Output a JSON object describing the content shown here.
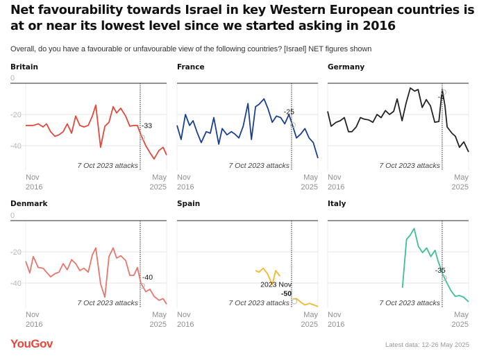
{
  "header": {
    "title": "Net favourability towards Israel in key Western European countries is at or near its lowest level since we started asking in 2016",
    "subtitle": "Overall, do you have a favourable or unfavourable view of the following countries? [Israel] NET figures shown"
  },
  "footer": {
    "logo": "YouGov",
    "logo_color": "#e8453c",
    "latest_data": "Latest data: 12-26 May 2025"
  },
  "chart_data": {
    "type": "line",
    "title": "Net favourability towards Israel in key Western European countries is at or near its lowest level since we started asking in 2016",
    "subtitle": "Overall, do you have a favourable or unfavourable view of the following countries? [Israel] NET figures shown",
    "layout": "small-multiples 3x2",
    "x_axis": {
      "type": "time",
      "range": [
        2016.83,
        2025.37
      ],
      "start_label": [
        "Nov",
        "2016"
      ],
      "end_label": [
        "May",
        "2025"
      ]
    },
    "y_axis": {
      "range": [
        -55,
        0
      ],
      "ticks": [
        0,
        -20,
        -40
      ],
      "tick_labels": [
        "0",
        "-20",
        "-40"
      ],
      "grid": true
    },
    "event_marker": {
      "x": 2023.77,
      "label": "7 Oct 2023 attacks",
      "style": "dotted vertical line"
    },
    "panels": [
      {
        "name": "Britain",
        "color": "#e2473b",
        "annotation": {
          "x": 2023.81,
          "value": -33,
          "label": "-33"
        },
        "series": [
          [
            2016.83,
            -27
          ],
          [
            2017.29,
            -27
          ],
          [
            2017.59,
            -26
          ],
          [
            2017.88,
            -28
          ],
          [
            2018.09,
            -26
          ],
          [
            2018.34,
            -31
          ],
          [
            2018.6,
            -34
          ],
          [
            2018.85,
            -33
          ],
          [
            2019.1,
            -31
          ],
          [
            2019.35,
            -26
          ],
          [
            2019.61,
            -32
          ],
          [
            2019.86,
            -21
          ],
          [
            2020.11,
            -27
          ],
          [
            2020.36,
            -28
          ],
          [
            2020.62,
            -27
          ],
          [
            2020.87,
            -21
          ],
          [
            2021.08,
            -14
          ],
          [
            2021.37,
            -41
          ],
          [
            2021.63,
            -27.5
          ],
          [
            2021.88,
            -25
          ],
          [
            2022.13,
            -15
          ],
          [
            2022.34,
            -19
          ],
          [
            2022.59,
            -16
          ],
          [
            2022.89,
            -21
          ],
          [
            2023.14,
            -27.5
          ],
          [
            2023.39,
            -27
          ],
          [
            2023.6,
            -27
          ],
          [
            2023.81,
            -33
          ],
          [
            2024.11,
            -40
          ],
          [
            2024.36,
            -44.5
          ],
          [
            2024.61,
            -48.5
          ],
          [
            2024.91,
            -43
          ],
          [
            2025.16,
            -41
          ],
          [
            2025.37,
            -46
          ]
        ]
      },
      {
        "name": "France",
        "color": "#1b3f8f",
        "annotation": {
          "x": 2023.77,
          "value": -25,
          "label": "-25"
        },
        "series": [
          [
            2016.83,
            -27
          ],
          [
            2017.08,
            -36
          ],
          [
            2017.34,
            -20
          ],
          [
            2017.59,
            -27
          ],
          [
            2017.8,
            -24
          ],
          [
            2018.05,
            -31.5
          ],
          [
            2018.3,
            -38
          ],
          [
            2018.6,
            -31
          ],
          [
            2018.85,
            -32
          ],
          [
            2019.06,
            -22
          ],
          [
            2019.36,
            -39
          ],
          [
            2019.57,
            -29
          ],
          [
            2019.86,
            -33
          ],
          [
            2020.12,
            -31
          ],
          [
            2020.33,
            -32.5
          ],
          [
            2020.58,
            -35
          ],
          [
            2020.84,
            -27.5
          ],
          [
            2021.13,
            -13
          ],
          [
            2021.34,
            -36
          ],
          [
            2021.59,
            -15
          ],
          [
            2021.8,
            -13.5
          ],
          [
            2022.1,
            -10
          ],
          [
            2022.35,
            -16.5
          ],
          [
            2022.6,
            -25
          ],
          [
            2022.86,
            -21
          ],
          [
            2023.11,
            -22
          ],
          [
            2023.36,
            -26
          ],
          [
            2023.61,
            -20
          ],
          [
            2023.77,
            -25
          ],
          [
            2024.07,
            -35
          ],
          [
            2024.33,
            -32.5
          ],
          [
            2024.58,
            -29
          ],
          [
            2024.83,
            -35
          ],
          [
            2025.09,
            -38
          ],
          [
            2025.37,
            -48
          ]
        ]
      },
      {
        "name": "Germany",
        "color": "#222222",
        "annotation": {
          "x": 2023.77,
          "value": -4,
          "label": "-4"
        },
        "series": [
          [
            2016.83,
            -18
          ],
          [
            2017.04,
            -27.5
          ],
          [
            2017.34,
            -25
          ],
          [
            2017.59,
            -24
          ],
          [
            2017.84,
            -22
          ],
          [
            2018.09,
            -31
          ],
          [
            2018.3,
            -31
          ],
          [
            2018.56,
            -28
          ],
          [
            2018.81,
            -22
          ],
          [
            2019.06,
            -23
          ],
          [
            2019.32,
            -23.5
          ],
          [
            2019.57,
            -25
          ],
          [
            2019.82,
            -20
          ],
          [
            2020.07,
            -22
          ],
          [
            2020.33,
            -17.5
          ],
          [
            2020.58,
            -20
          ],
          [
            2020.83,
            -18
          ],
          [
            2021.04,
            -10
          ],
          [
            2021.34,
            -24
          ],
          [
            2021.59,
            -12.5
          ],
          [
            2021.84,
            -3
          ],
          [
            2022.1,
            -5
          ],
          [
            2022.31,
            -4
          ],
          [
            2022.56,
            -15.5
          ],
          [
            2022.81,
            -10.5
          ],
          [
            2023.06,
            -14.5
          ],
          [
            2023.32,
            -25
          ],
          [
            2023.57,
            -24.5
          ],
          [
            2023.77,
            -4
          ],
          [
            2023.94,
            -14.5
          ],
          [
            2024.07,
            -28
          ],
          [
            2024.36,
            -32
          ],
          [
            2024.57,
            -34
          ],
          [
            2024.82,
            -41
          ],
          [
            2025.08,
            -37.5
          ],
          [
            2025.37,
            -44
          ]
        ]
      },
      {
        "name": "Denmark",
        "color": "#e8756b",
        "annotation": {
          "x": 2023.81,
          "value": -40,
          "label": "-40"
        },
        "series": [
          [
            2016.83,
            -26
          ],
          [
            2017.08,
            -33.5
          ],
          [
            2017.29,
            -23
          ],
          [
            2017.59,
            -30
          ],
          [
            2017.88,
            -30.5
          ],
          [
            2018.09,
            -33
          ],
          [
            2018.34,
            -36
          ],
          [
            2018.6,
            -34
          ],
          [
            2018.85,
            -33
          ],
          [
            2019.1,
            -27.5
          ],
          [
            2019.35,
            -31.5
          ],
          [
            2019.61,
            -25
          ],
          [
            2019.86,
            -27.5
          ],
          [
            2020.11,
            -32
          ],
          [
            2020.36,
            -30.5
          ],
          [
            2020.62,
            -33
          ],
          [
            2020.87,
            -22
          ],
          [
            2021.08,
            -17.5
          ],
          [
            2021.37,
            -40.5
          ],
          [
            2021.63,
            -49
          ],
          [
            2021.88,
            -23
          ],
          [
            2022.13,
            -17.5
          ],
          [
            2022.34,
            -24
          ],
          [
            2022.59,
            -22.5
          ],
          [
            2022.89,
            -25.5
          ],
          [
            2023.14,
            -35
          ],
          [
            2023.39,
            -35
          ],
          [
            2023.6,
            -30
          ],
          [
            2023.81,
            -40
          ],
          [
            2024.11,
            -45.5
          ],
          [
            2024.36,
            -44
          ],
          [
            2024.61,
            -48.5
          ],
          [
            2024.91,
            -51
          ],
          [
            2025.16,
            -50
          ],
          [
            2025.37,
            -53.5
          ]
        ]
      },
      {
        "name": "Spain",
        "color": "#f1b82d",
        "annotation": {
          "x": 2023.86,
          "value": -50,
          "label_top": "2023 Nov",
          "label": "-50"
        },
        "series": [
          [
            2021.59,
            -32
          ],
          [
            2021.8,
            -33
          ],
          [
            2022.05,
            -30.5
          ],
          [
            2022.31,
            -34
          ],
          [
            2022.6,
            -41
          ],
          [
            2022.81,
            -32
          ],
          [
            2023.07,
            -35.5
          ],
          [
            2023.86,
            -50
          ],
          [
            2024.07,
            -50
          ],
          [
            2024.36,
            -52.5
          ],
          [
            2024.57,
            -54
          ],
          [
            2024.87,
            -53
          ],
          [
            2025.12,
            -54
          ],
          [
            2025.37,
            -55
          ]
        ],
        "gap_after_index": 6
      },
      {
        "name": "Italy",
        "color": "#3cbf94",
        "annotation": {
          "x": 2023.81,
          "value": -35,
          "label": "-35"
        },
        "series": [
          [
            2021.36,
            -43
          ],
          [
            2021.61,
            -12
          ],
          [
            2021.82,
            -9.5
          ],
          [
            2022.07,
            -5
          ],
          [
            2022.33,
            -16.5
          ],
          [
            2022.58,
            -20.5
          ],
          [
            2022.83,
            -17.5
          ],
          [
            2023.08,
            -23
          ],
          [
            2023.34,
            -19
          ],
          [
            2023.51,
            -25.5
          ],
          [
            2023.81,
            -34.5
          ],
          [
            2024.06,
            -40
          ],
          [
            2024.31,
            -45
          ],
          [
            2024.56,
            -48.5
          ],
          [
            2024.81,
            -48
          ],
          [
            2025.07,
            -49
          ],
          [
            2025.37,
            -52
          ]
        ]
      }
    ]
  }
}
